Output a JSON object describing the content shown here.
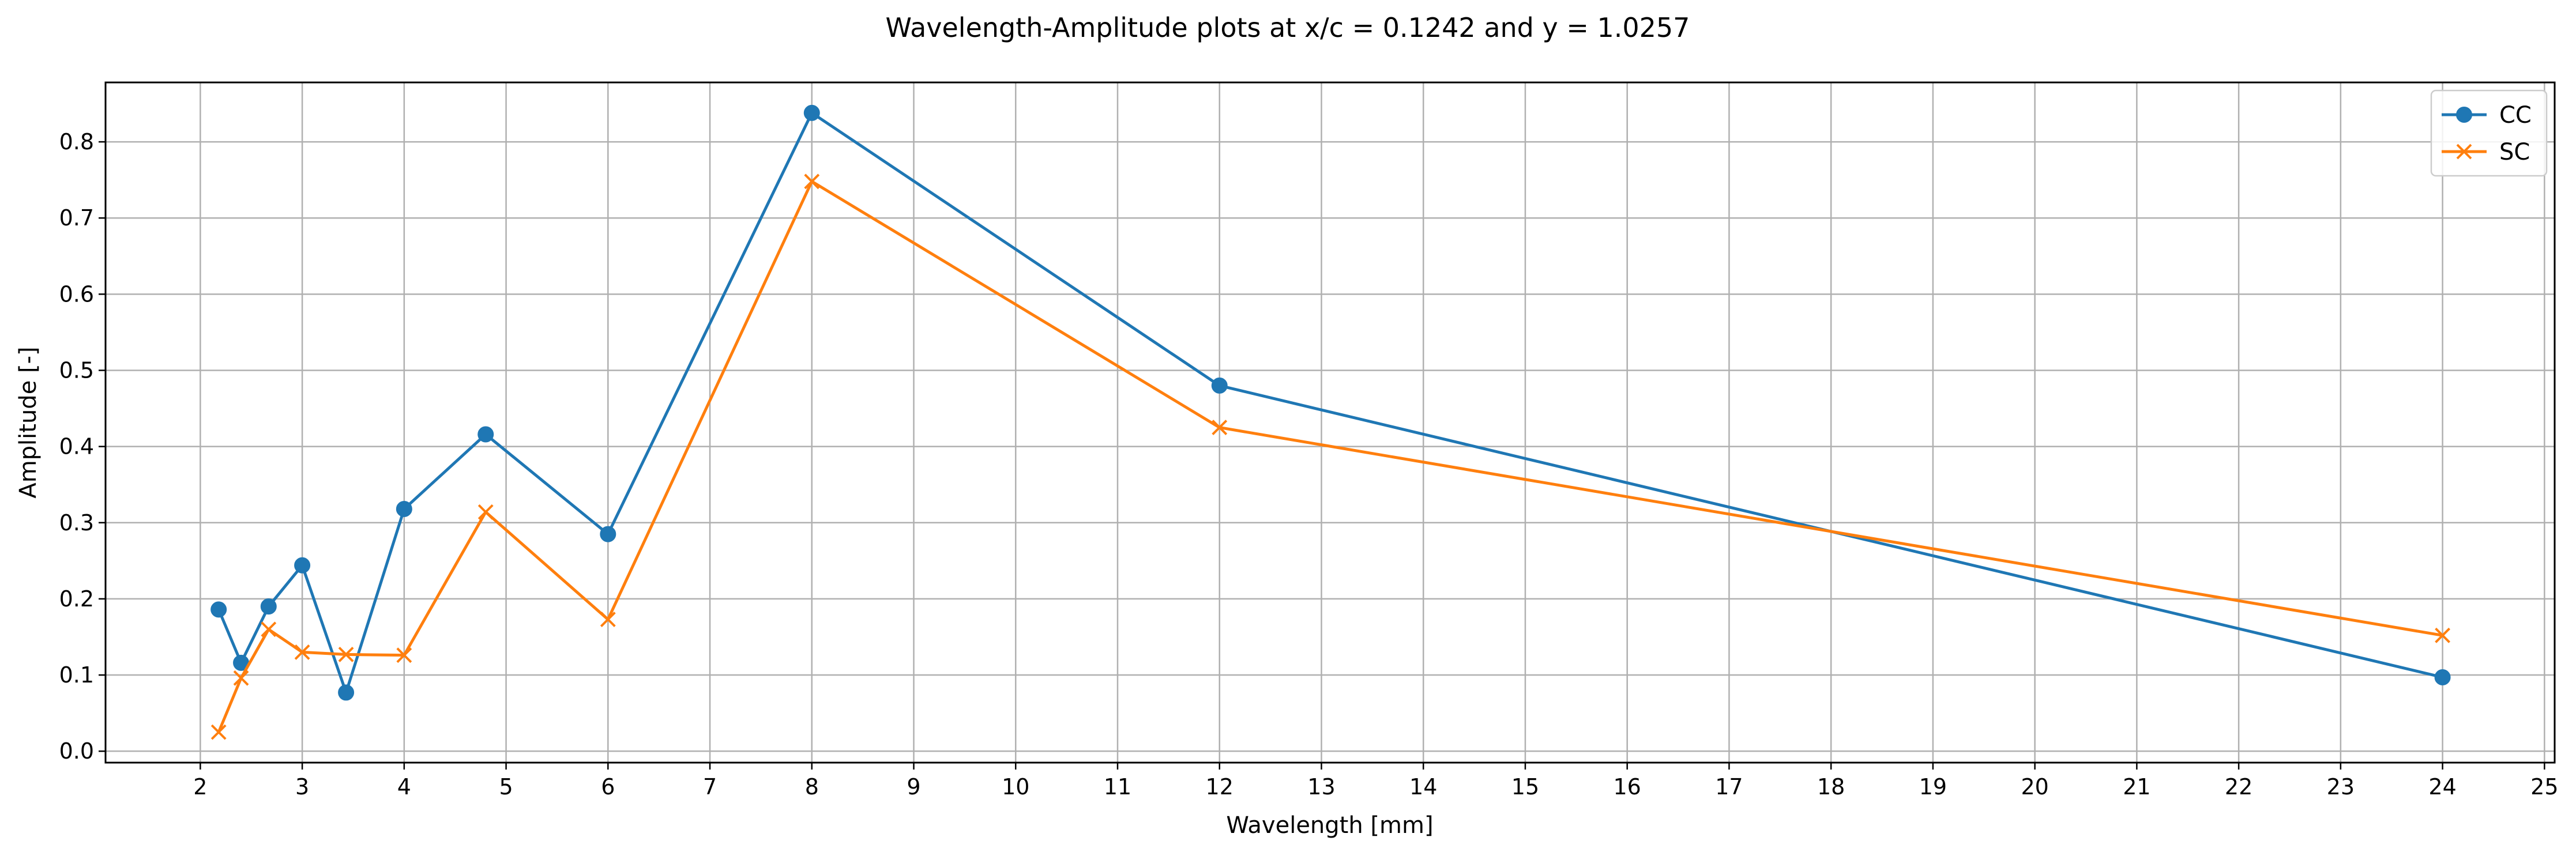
{
  "chart_data": {
    "type": "line",
    "title": "Wavelength-Amplitude plots at x/c = 0.1242 and y = 1.0257",
    "xlabel": "Wavelength [mm]",
    "ylabel": "Amplitude [-]",
    "xlim": [
      1.07,
      25.1
    ],
    "ylim": [
      -0.015,
      0.878
    ],
    "xticks": [
      2,
      3,
      4,
      5,
      6,
      7,
      8,
      9,
      10,
      11,
      12,
      13,
      14,
      15,
      16,
      17,
      18,
      19,
      20,
      21,
      22,
      23,
      24,
      25
    ],
    "yticks": [
      0.0,
      0.1,
      0.2,
      0.3,
      0.4,
      0.5,
      0.6,
      0.7,
      0.8
    ],
    "xtick_labels": [
      "2",
      "3",
      "4",
      "5",
      "6",
      "7",
      "8",
      "9",
      "10",
      "11",
      "12",
      "13",
      "14",
      "15",
      "16",
      "17",
      "18",
      "19",
      "20",
      "21",
      "22",
      "23",
      "24",
      "25"
    ],
    "ytick_labels": [
      "0.0",
      "0.1",
      "0.2",
      "0.3",
      "0.4",
      "0.5",
      "0.6",
      "0.7",
      "0.8"
    ],
    "grid": true,
    "legend_position": "top-right",
    "series": [
      {
        "name": "CC",
        "color": "#1f77b4",
        "marker": "circle",
        "x": [
          2.18,
          2.4,
          2.67,
          3.0,
          3.43,
          4.0,
          4.8,
          6.0,
          8.0,
          12.0,
          24.0
        ],
        "y": [
          0.186,
          0.116,
          0.19,
          0.244,
          0.077,
          0.318,
          0.416,
          0.285,
          0.838,
          0.48,
          0.097
        ]
      },
      {
        "name": "SC",
        "color": "#ff7f0e",
        "marker": "x",
        "x": [
          2.18,
          2.4,
          2.67,
          3.0,
          3.43,
          4.0,
          4.8,
          6.0,
          8.0,
          12.0,
          24.0
        ],
        "y": [
          0.025,
          0.096,
          0.16,
          0.13,
          0.127,
          0.126,
          0.314,
          0.173,
          0.748,
          0.425,
          0.152
        ]
      }
    ]
  }
}
